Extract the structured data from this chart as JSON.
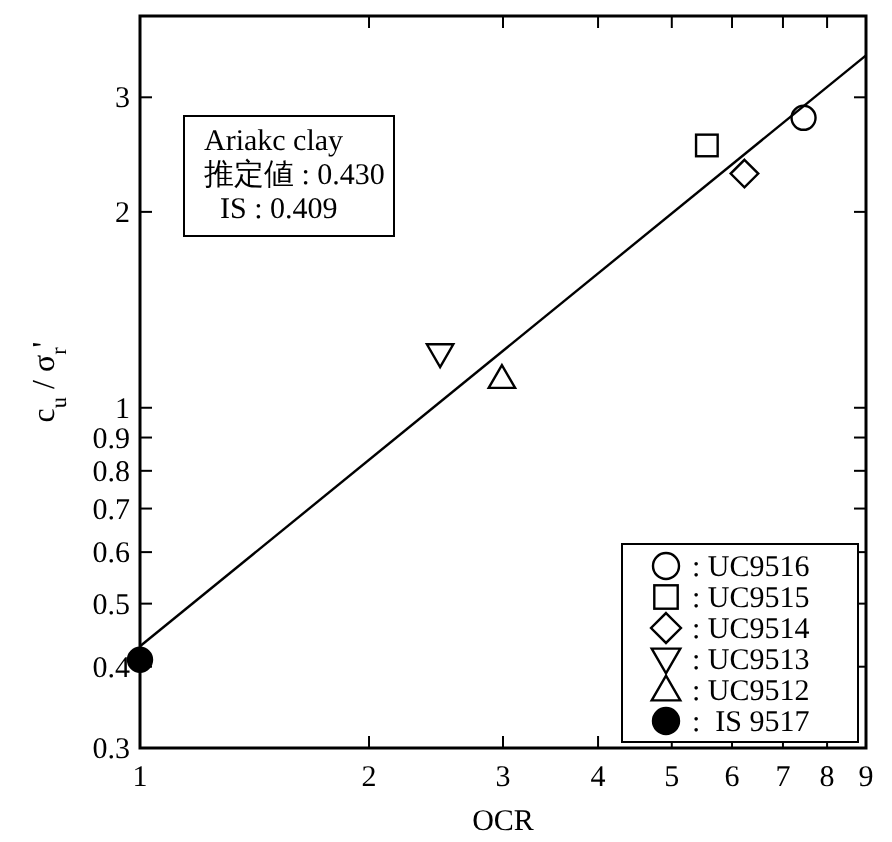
{
  "chart_data": {
    "type": "scatter",
    "xlabel": "OCR",
    "ylabel": "c$_{u}$ / σ$_{r}$'",
    "log": "xy",
    "grid": false,
    "legend": "bottom right",
    "xlim": [
      1,
      9
    ],
    "xticks": [
      1,
      2,
      3,
      4,
      5,
      6,
      7,
      8,
      9
    ],
    "ylim": [
      0.3,
      4
    ],
    "yticks": [
      0.3,
      0.4,
      0.5,
      0.6,
      0.7,
      0.8,
      0.9,
      1,
      2,
      3
    ],
    "annotations": [
      "Ariakc clay",
      "推定値 : 0.430",
      "IS : 0.409"
    ],
    "series": [
      {
        "name": ": UC9516",
        "marker": "circle",
        "color": "#000000",
        "x": [
          7.45
        ],
        "values": [
          2.79
        ]
      },
      {
        "name": ": UC9515",
        "marker": "square",
        "color": "#000000",
        "x": [
          5.56
        ],
        "values": [
          2.53
        ]
      },
      {
        "name": ": UC9514",
        "marker": "diamond",
        "color": "#000000",
        "x": [
          6.23
        ],
        "values": [
          2.29
        ]
      },
      {
        "name": ": UC9513",
        "marker": "triangle-down",
        "color": "#000000",
        "x": [
          2.48
        ],
        "values": [
          1.21
        ]
      },
      {
        "name": ": UC9512",
        "marker": "triangle",
        "color": "#000000",
        "x": [
          2.99
        ],
        "values": [
          1.11
        ]
      },
      {
        "name": ":  IS 9517",
        "marker": "circle-filled",
        "color": "#000000",
        "x": [
          1
        ],
        "values": [
          0.41
        ]
      },
      {
        "type": "line",
        "color": "#000000",
        "line_style": "solid",
        "x": [
          1,
          9
        ],
        "values": [
          0.43,
          3.48
        ]
      }
    ]
  }
}
